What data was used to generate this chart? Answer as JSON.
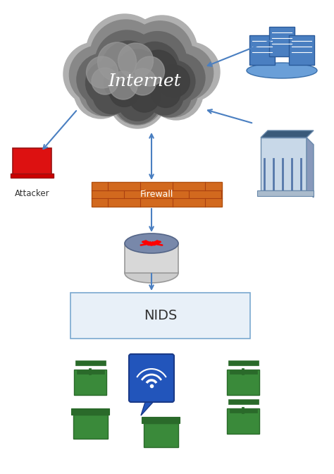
{
  "bg_color": "#ffffff",
  "arrow_color": "#4a7fc1",
  "firewall_color": "#d2691e",
  "firewall_text": "Firewall",
  "nids_text": "NIDS",
  "internet_text": "Internet",
  "attacker_text": "Attacker",
  "nids_box_color": "#e8f0f8",
  "nids_box_edge": "#7aa8d0",
  "cloud_colors": [
    "#aaaaaa",
    "#888888",
    "#666666",
    "#555555",
    "#444444",
    "#383838"
  ],
  "router_top_color": "#8899bb",
  "router_side_color": "#c8c8c8",
  "router_bottom_color": "#aaaaaa",
  "server_blue": "#4a7fc1",
  "server_light": "#6baed6",
  "building_dark": "#3a5a8a",
  "building_mid": "#5b7faa",
  "building_light": "#8aaacf",
  "green_device": "#3a8a3a",
  "green_dark": "#2a6a2a",
  "wifi_blue": "#2255bb",
  "wifi_blue_dark": "#1a3a88"
}
